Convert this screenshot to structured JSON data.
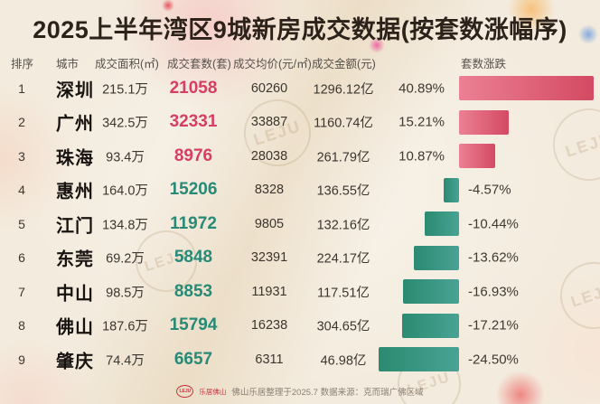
{
  "title": "2025上半年湾区9城新房成交数据(按套数涨幅序)",
  "watermark": "LEJU",
  "table": {
    "columns": [
      "排序",
      "城市",
      "成交面积(㎡)",
      "成交套数(套)",
      "成交均价(元/㎡)",
      "成交金额(元)",
      "套数涨跌"
    ],
    "rows": [
      {
        "rank": "1",
        "city": "深圳",
        "area": "215.1万",
        "units": "21058",
        "price": "60260",
        "amount": "1296.12亿",
        "change": "40.89%",
        "change_value": 40.89
      },
      {
        "rank": "2",
        "city": "广州",
        "area": "342.5万",
        "units": "32331",
        "price": "33887",
        "amount": "1160.74亿",
        "change": "15.21%",
        "change_value": 15.21
      },
      {
        "rank": "3",
        "city": "珠海",
        "area": "93.4万",
        "units": "8976",
        "price": "28038",
        "amount": "261.79亿",
        "change": "10.87%",
        "change_value": 10.87
      },
      {
        "rank": "4",
        "city": "惠州",
        "area": "164.0万",
        "units": "15206",
        "price": "8328",
        "amount": "136.55亿",
        "change": "-4.57%",
        "change_value": -4.57
      },
      {
        "rank": "5",
        "city": "江门",
        "area": "134.8万",
        "units": "11972",
        "price": "9805",
        "amount": "132.16亿",
        "change": "-10.44%",
        "change_value": -10.44
      },
      {
        "rank": "6",
        "city": "东莞",
        "area": "69.2万",
        "units": "5848",
        "price": "32391",
        "amount": "224.17亿",
        "change": "-13.62%",
        "change_value": -13.62
      },
      {
        "rank": "7",
        "city": "中山",
        "area": "98.5万",
        "units": "8853",
        "price": "11931",
        "amount": "117.51亿",
        "change": "-16.93%",
        "change_value": -16.93
      },
      {
        "rank": "8",
        "city": "佛山",
        "area": "187.6万",
        "units": "15794",
        "price": "16238",
        "amount": "304.65亿",
        "change": "-17.21%",
        "change_value": -17.21
      },
      {
        "rank": "9",
        "city": "肇庆",
        "area": "74.4万",
        "units": "6657",
        "price": "6311",
        "amount": "46.98亿",
        "change": "-24.50%",
        "change_value": -24.5
      }
    ]
  },
  "chart_data": {
    "type": "bar",
    "orientation": "horizontal",
    "title": "2025上半年湾区9城新房成交数据(按套数涨幅序)",
    "categories": [
      "深圳",
      "广州",
      "珠海",
      "惠州",
      "江门",
      "东莞",
      "中山",
      "佛山",
      "肇庆"
    ],
    "series": [
      {
        "name": "成交面积(万㎡)",
        "values": [
          215.1,
          342.5,
          93.4,
          164.0,
          134.8,
          69.2,
          98.5,
          187.6,
          74.4
        ]
      },
      {
        "name": "成交套数(套)",
        "values": [
          21058,
          32331,
          8976,
          15206,
          11972,
          5848,
          8853,
          15794,
          6657
        ]
      },
      {
        "name": "成交均价(元/㎡)",
        "values": [
          60260,
          33887,
          28038,
          8328,
          9805,
          32391,
          11931,
          16238,
          6311
        ]
      },
      {
        "name": "成交金额(亿元)",
        "values": [
          1296.12,
          1160.74,
          261.79,
          136.55,
          132.16,
          224.17,
          117.51,
          304.65,
          46.98
        ]
      },
      {
        "name": "套数涨跌(%)",
        "values": [
          40.89,
          15.21,
          10.87,
          -4.57,
          -10.44,
          -13.62,
          -16.93,
          -17.21,
          -24.5
        ]
      }
    ],
    "plotted_series": "套数涨跌(%)",
    "value_range": [
      -24.5,
      40.89
    ],
    "grid": false,
    "legend": false
  },
  "colors": {
    "up_text": "#d63e63",
    "down_text": "#278a76",
    "bar_up_start": "#ec8094",
    "bar_up_end": "#d34a62",
    "bar_down_start": "#2b8a71",
    "bar_down_end": "#49a394",
    "background": "#f3ebdd"
  },
  "footer": {
    "logo": "LEJU",
    "logo_text": "乐居佛山",
    "note": "佛山乐居整理于2025.7 数据来源：克而瑞广佛区域"
  }
}
